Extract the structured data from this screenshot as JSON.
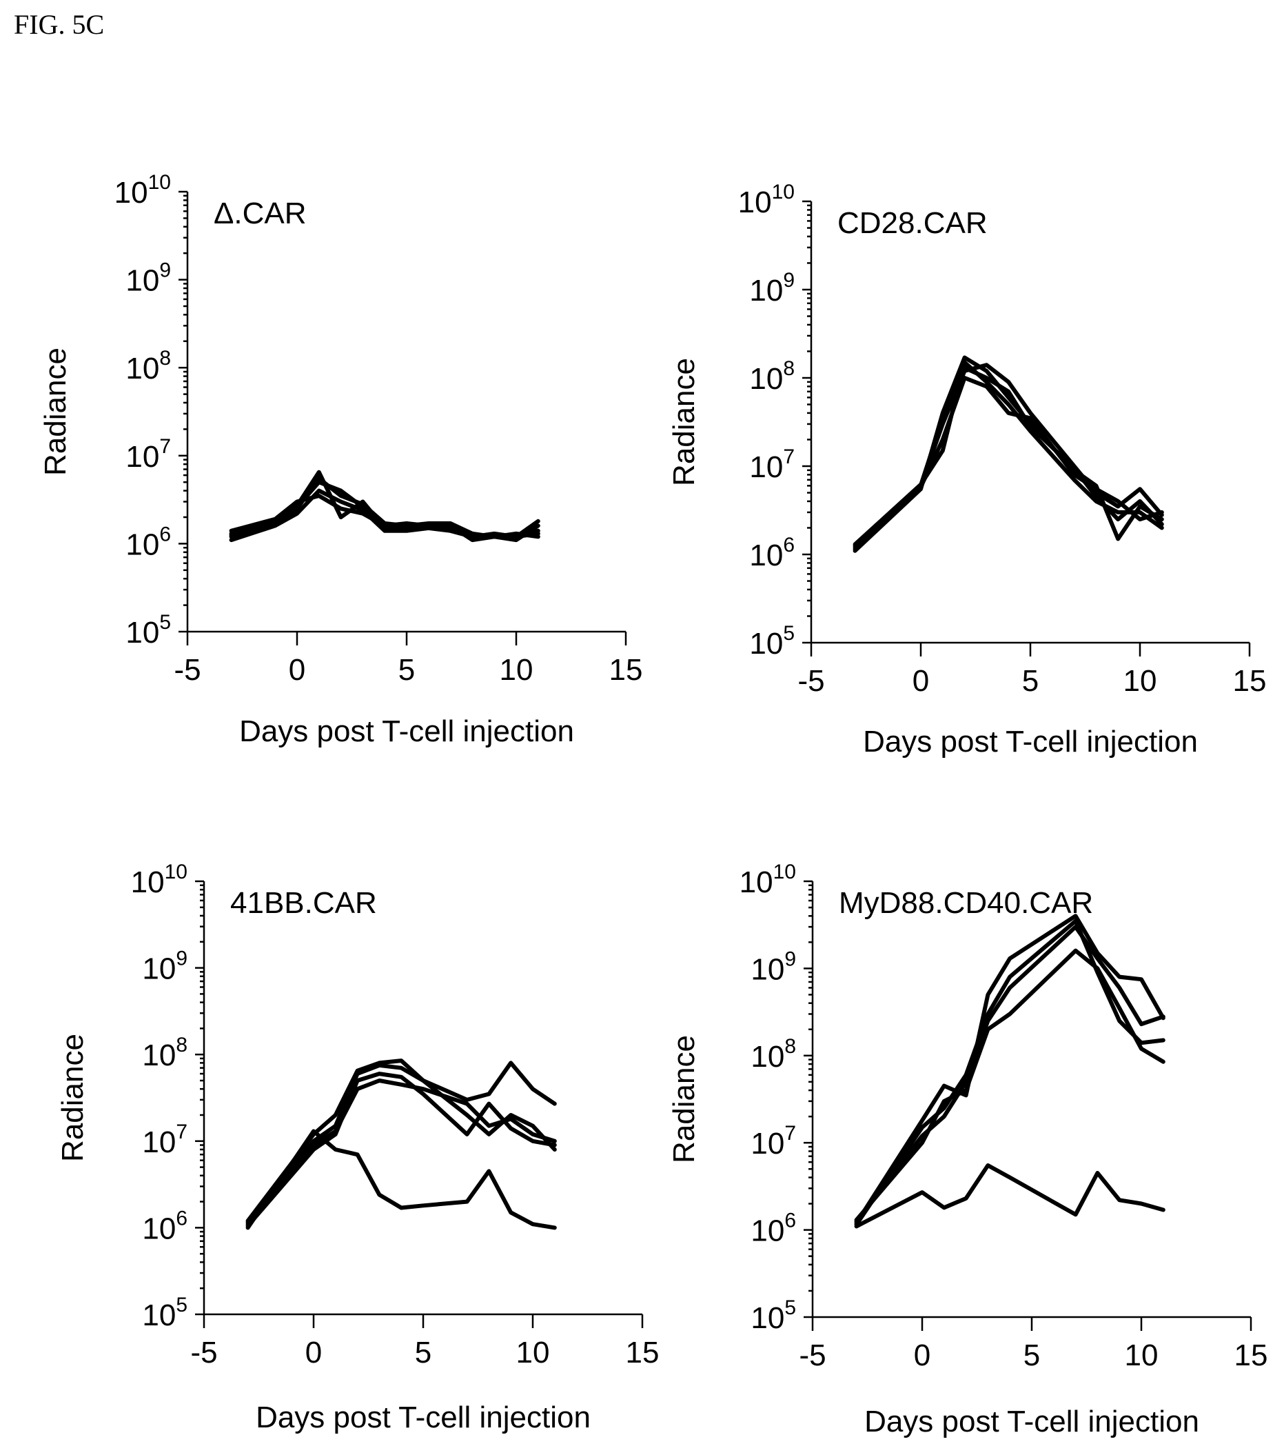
{
  "figure_label": "FIG. 5C",
  "chart_data": [
    {
      "type": "line",
      "title": "Δ.CAR",
      "xlabel": "Days post T-cell injection",
      "ylabel": "Radiance",
      "xlim": [
        -5,
        15
      ],
      "ylim": [
        100000,
        10000000000
      ],
      "yscale": "log",
      "xticks": [
        "-5",
        "0",
        "5",
        "10",
        "15"
      ],
      "yticks": [
        {
          "base": "10",
          "exp": "5"
        },
        {
          "base": "10",
          "exp": "6"
        },
        {
          "base": "10",
          "exp": "7"
        },
        {
          "base": "10",
          "exp": "8"
        },
        {
          "base": "10",
          "exp": "9"
        },
        {
          "base": "10",
          "exp": "10"
        }
      ],
      "grid": false,
      "x": [
        -3,
        -1,
        0,
        1,
        2,
        3,
        4,
        5,
        6,
        7,
        8,
        9,
        10,
        11
      ],
      "series": [
        {
          "values": [
            1200000,
            1800000,
            2700000,
            6500000,
            2000000,
            3000000,
            1500000,
            1500000,
            1600000,
            1600000,
            1100000,
            1200000,
            1200000,
            1300000
          ]
        },
        {
          "values": [
            1300000,
            1700000,
            2500000,
            5500000,
            3500000,
            2800000,
            1700000,
            1600000,
            1700000,
            1700000,
            1300000,
            1200000,
            1100000,
            1600000
          ]
        },
        {
          "values": [
            1100000,
            1600000,
            2200000,
            4000000,
            3000000,
            2400000,
            1400000,
            1400000,
            1500000,
            1400000,
            1200000,
            1200000,
            1300000,
            1200000
          ]
        },
        {
          "values": [
            1400000,
            1900000,
            3000000,
            3500000,
            2500000,
            2200000,
            1600000,
            1700000,
            1600000,
            1500000,
            1200000,
            1300000,
            1200000,
            1800000
          ]
        },
        {
          "values": [
            1250000,
            1750000,
            2600000,
            5000000,
            4000000,
            2600000,
            1500000,
            1550000,
            1550000,
            1550000,
            1150000,
            1250000,
            1250000,
            1400000
          ]
        }
      ]
    },
    {
      "type": "line",
      "title": "CD28.CAR",
      "xlabel": "Days post T-cell injection",
      "ylabel": "Radiance",
      "xlim": [
        -5,
        15
      ],
      "ylim": [
        100000,
        10000000000
      ],
      "yscale": "log",
      "xticks": [
        "-5",
        "0",
        "5",
        "10",
        "15"
      ],
      "yticks": [
        {
          "base": "10",
          "exp": "5"
        },
        {
          "base": "10",
          "exp": "6"
        },
        {
          "base": "10",
          "exp": "7"
        },
        {
          "base": "10",
          "exp": "8"
        },
        {
          "base": "10",
          "exp": "9"
        },
        {
          "base": "10",
          "exp": "10"
        }
      ],
      "grid": false,
      "x": [
        -3,
        0,
        1,
        2,
        3,
        4,
        5,
        7,
        8,
        9,
        10,
        11
      ],
      "series": [
        {
          "values": [
            1100000,
            5500000,
            40000000,
            170000000,
            120000000,
            60000000,
            30000000,
            9000000,
            6000000,
            1500000,
            3500000,
            2500000
          ]
        },
        {
          "values": [
            1200000,
            6000000,
            30000000,
            120000000,
            140000000,
            90000000,
            40000000,
            10000000,
            5000000,
            3500000,
            5500000,
            2800000
          ]
        },
        {
          "values": [
            1300000,
            6200000,
            15000000,
            150000000,
            90000000,
            50000000,
            25000000,
            7000000,
            4000000,
            3000000,
            3000000,
            2000000
          ]
        },
        {
          "values": [
            1150000,
            5800000,
            20000000,
            100000000,
            80000000,
            40000000,
            35000000,
            8000000,
            5500000,
            4000000,
            2500000,
            3000000
          ]
        },
        {
          "values": [
            1250000,
            6100000,
            35000000,
            130000000,
            100000000,
            70000000,
            28000000,
            9500000,
            4500000,
            2500000,
            4000000,
            2200000
          ]
        }
      ]
    },
    {
      "type": "line",
      "title": "41BB.CAR",
      "xlabel": "Days post T-cell injection",
      "ylabel": "Radiance",
      "xlim": [
        -5,
        15
      ],
      "ylim": [
        100000,
        10000000000
      ],
      "yscale": "log",
      "xticks": [
        "-5",
        "0",
        "5",
        "10",
        "15"
      ],
      "yticks": [
        {
          "base": "10",
          "exp": "5"
        },
        {
          "base": "10",
          "exp": "6"
        },
        {
          "base": "10",
          "exp": "7"
        },
        {
          "base": "10",
          "exp": "8"
        },
        {
          "base": "10",
          "exp": "9"
        },
        {
          "base": "10",
          "exp": "10"
        }
      ],
      "grid": false,
      "x": [
        -3,
        0,
        1,
        2,
        3,
        4,
        5,
        7,
        8,
        9,
        10,
        11
      ],
      "series": [
        {
          "values": [
            1000000,
            13000000,
            8000000,
            7000000,
            2400000,
            1700000,
            1800000,
            2000000,
            4500000,
            1500000,
            1100000,
            1000000
          ]
        },
        {
          "values": [
            1200000,
            12000000,
            20000000,
            65000000,
            80000000,
            85000000,
            50000000,
            30000000,
            35000000,
            80000000,
            40000000,
            27000000
          ]
        },
        {
          "values": [
            1100000,
            10000000,
            15000000,
            60000000,
            75000000,
            70000000,
            50000000,
            20000000,
            12000000,
            20000000,
            15000000,
            8000000
          ]
        },
        {
          "values": [
            1150000,
            9000000,
            13000000,
            40000000,
            50000000,
            45000000,
            40000000,
            27000000,
            15000000,
            18000000,
            12000000,
            10000000
          ]
        },
        {
          "values": [
            1050000,
            8000000,
            12000000,
            50000000,
            60000000,
            55000000,
            35000000,
            12000000,
            27000000,
            14000000,
            10000000,
            9000000
          ]
        }
      ]
    },
    {
      "type": "line",
      "title": "MyD88.CD40.CAR",
      "xlabel": "Days post T-cell injection",
      "ylabel": "Radiance",
      "xlim": [
        -5,
        15
      ],
      "ylim": [
        100000,
        10000000000
      ],
      "yscale": "log",
      "xticks": [
        "-5",
        "0",
        "5",
        "10",
        "15"
      ],
      "yticks": [
        {
          "base": "10",
          "exp": "5"
        },
        {
          "base": "10",
          "exp": "6"
        },
        {
          "base": "10",
          "exp": "7"
        },
        {
          "base": "10",
          "exp": "8"
        },
        {
          "base": "10",
          "exp": "9"
        },
        {
          "base": "10",
          "exp": "10"
        }
      ],
      "grid": false,
      "x": [
        -3,
        0,
        1,
        2,
        3,
        4,
        7,
        8,
        9,
        10,
        11
      ],
      "series": [
        {
          "values": [
            1100000,
            2700000,
            1800000,
            2300000,
            5500000,
            4000000,
            1500000,
            4500000,
            2200000,
            2000000,
            1700000
          ]
        },
        {
          "values": [
            1200000,
            18000000,
            45000000,
            35000000,
            500000000,
            1300000000,
            4000000000,
            1500000000,
            800000000,
            750000000,
            270000000
          ]
        },
        {
          "values": [
            1150000,
            15000000,
            25000000,
            60000000,
            300000000,
            800000000,
            3500000000,
            900000000,
            250000000,
            140000000,
            150000000
          ]
        },
        {
          "values": [
            1250000,
            12000000,
            20000000,
            50000000,
            250000000,
            600000000,
            3000000000,
            1300000000,
            600000000,
            230000000,
            280000000
          ]
        },
        {
          "values": [
            1300000,
            10000000,
            30000000,
            40000000,
            200000000,
            300000000,
            1600000000,
            1000000000,
            350000000,
            120000000,
            85000000
          ]
        }
      ]
    }
  ]
}
